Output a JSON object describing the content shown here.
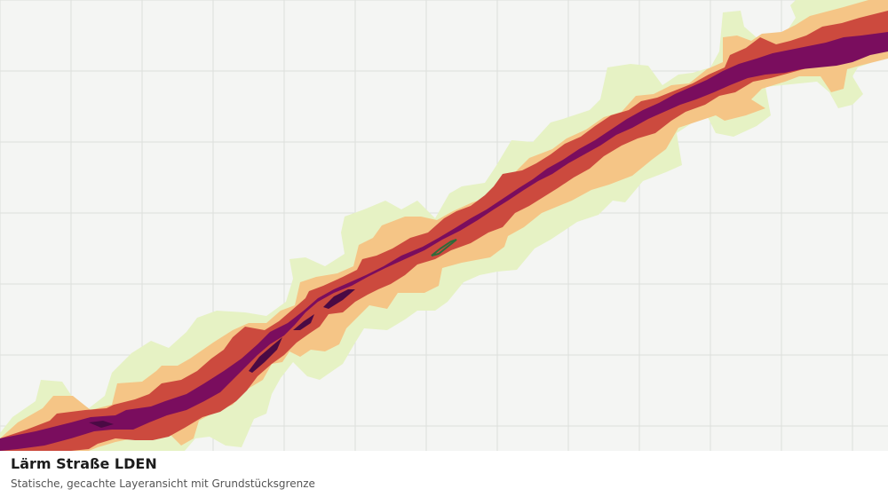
{
  "layer": {
    "title": "Lärm Straße LDEN",
    "subtitle": "Statische, gecachte Layeransicht mit Grundstücksgrenze"
  },
  "noise_bands": [
    {
      "name": "band-1",
      "color": "#e6f2c4"
    },
    {
      "name": "band-2",
      "color": "#f5c586"
    },
    {
      "name": "band-3",
      "color": "#cc4a3e"
    },
    {
      "name": "band-4",
      "color": "#7a0d5e"
    },
    {
      "name": "band-5",
      "color": "#4a0a44"
    }
  ],
  "grid_color": "#dcdedb",
  "parcel_color": "#2f6b3a"
}
